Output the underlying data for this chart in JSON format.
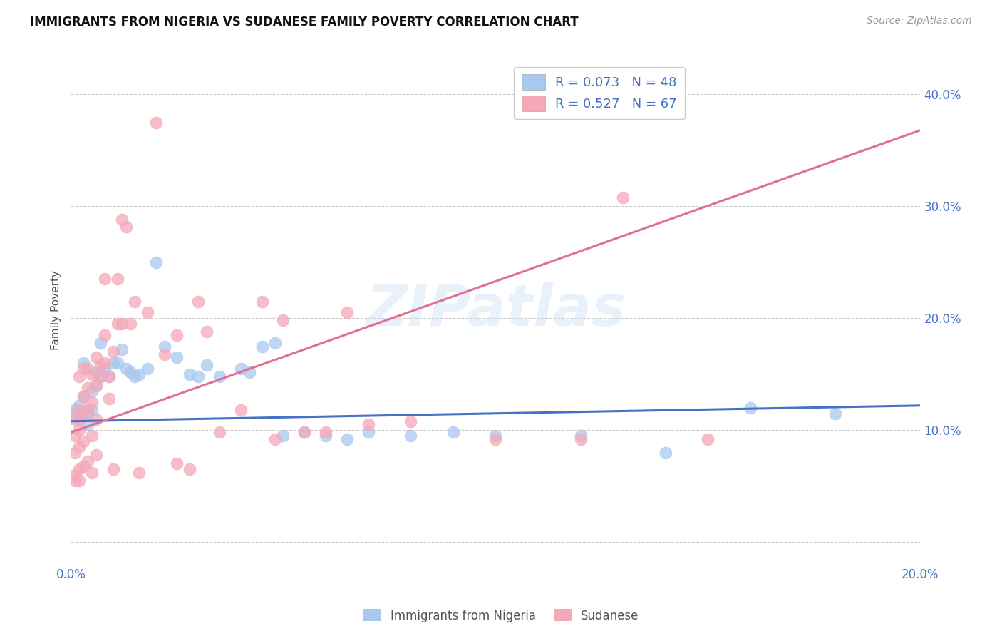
{
  "title": "IMMIGRANTS FROM NIGERIA VS SUDANESE FAMILY POVERTY CORRELATION CHART",
  "source": "Source: ZipAtlas.com",
  "ylabel": "Family Poverty",
  "xlim": [
    0.0,
    0.2
  ],
  "ylim": [
    -0.02,
    0.435
  ],
  "legend_label1": "Immigrants from Nigeria",
  "legend_label2": "Sudanese",
  "color_blue": "#a8c8f0",
  "color_pink": "#f5a8b8",
  "line_blue": "#4472c4",
  "line_pink": "#e07090",
  "legend_text_color": "#4472c4",
  "watermark": "ZIPatlas",
  "background_color": "#ffffff",
  "grid_color": "#cccccc",
  "blue_scatter": [
    [
      0.001,
      0.118
    ],
    [
      0.001,
      0.115
    ],
    [
      0.002,
      0.122
    ],
    [
      0.002,
      0.11
    ],
    [
      0.003,
      0.16
    ],
    [
      0.003,
      0.13
    ],
    [
      0.003,
      0.113
    ],
    [
      0.004,
      0.115
    ],
    [
      0.004,
      0.105
    ],
    [
      0.005,
      0.135
    ],
    [
      0.005,
      0.118
    ],
    [
      0.006,
      0.152
    ],
    [
      0.006,
      0.14
    ],
    [
      0.007,
      0.178
    ],
    [
      0.007,
      0.148
    ],
    [
      0.008,
      0.155
    ],
    [
      0.009,
      0.148
    ],
    [
      0.01,
      0.16
    ],
    [
      0.011,
      0.16
    ],
    [
      0.012,
      0.172
    ],
    [
      0.013,
      0.155
    ],
    [
      0.014,
      0.152
    ],
    [
      0.015,
      0.148
    ],
    [
      0.016,
      0.15
    ],
    [
      0.018,
      0.155
    ],
    [
      0.02,
      0.25
    ],
    [
      0.022,
      0.175
    ],
    [
      0.025,
      0.165
    ],
    [
      0.028,
      0.15
    ],
    [
      0.03,
      0.148
    ],
    [
      0.032,
      0.158
    ],
    [
      0.035,
      0.148
    ],
    [
      0.04,
      0.155
    ],
    [
      0.042,
      0.152
    ],
    [
      0.045,
      0.175
    ],
    [
      0.048,
      0.178
    ],
    [
      0.05,
      0.095
    ],
    [
      0.055,
      0.098
    ],
    [
      0.06,
      0.095
    ],
    [
      0.065,
      0.092
    ],
    [
      0.07,
      0.098
    ],
    [
      0.08,
      0.095
    ],
    [
      0.09,
      0.098
    ],
    [
      0.1,
      0.095
    ],
    [
      0.12,
      0.095
    ],
    [
      0.14,
      0.08
    ],
    [
      0.16,
      0.12
    ],
    [
      0.18,
      0.115
    ]
  ],
  "pink_scatter": [
    [
      0.001,
      0.11
    ],
    [
      0.001,
      0.095
    ],
    [
      0.001,
      0.08
    ],
    [
      0.001,
      0.06
    ],
    [
      0.001,
      0.055
    ],
    [
      0.002,
      0.148
    ],
    [
      0.002,
      0.118
    ],
    [
      0.002,
      0.1
    ],
    [
      0.002,
      0.085
    ],
    [
      0.002,
      0.065
    ],
    [
      0.002,
      0.055
    ],
    [
      0.003,
      0.155
    ],
    [
      0.003,
      0.13
    ],
    [
      0.003,
      0.112
    ],
    [
      0.003,
      0.09
    ],
    [
      0.003,
      0.068
    ],
    [
      0.004,
      0.155
    ],
    [
      0.004,
      0.138
    ],
    [
      0.004,
      0.118
    ],
    [
      0.004,
      0.072
    ],
    [
      0.005,
      0.15
    ],
    [
      0.005,
      0.125
    ],
    [
      0.005,
      0.095
    ],
    [
      0.005,
      0.062
    ],
    [
      0.006,
      0.165
    ],
    [
      0.006,
      0.14
    ],
    [
      0.006,
      0.11
    ],
    [
      0.006,
      0.078
    ],
    [
      0.007,
      0.158
    ],
    [
      0.007,
      0.148
    ],
    [
      0.008,
      0.235
    ],
    [
      0.008,
      0.185
    ],
    [
      0.008,
      0.16
    ],
    [
      0.009,
      0.148
    ],
    [
      0.009,
      0.128
    ],
    [
      0.01,
      0.17
    ],
    [
      0.01,
      0.065
    ],
    [
      0.011,
      0.235
    ],
    [
      0.011,
      0.195
    ],
    [
      0.012,
      0.288
    ],
    [
      0.012,
      0.195
    ],
    [
      0.013,
      0.282
    ],
    [
      0.014,
      0.195
    ],
    [
      0.015,
      0.215
    ],
    [
      0.016,
      0.062
    ],
    [
      0.018,
      0.205
    ],
    [
      0.02,
      0.375
    ],
    [
      0.022,
      0.168
    ],
    [
      0.025,
      0.185
    ],
    [
      0.025,
      0.07
    ],
    [
      0.028,
      0.065
    ],
    [
      0.03,
      0.215
    ],
    [
      0.032,
      0.188
    ],
    [
      0.035,
      0.098
    ],
    [
      0.04,
      0.118
    ],
    [
      0.045,
      0.215
    ],
    [
      0.048,
      0.092
    ],
    [
      0.05,
      0.198
    ],
    [
      0.055,
      0.098
    ],
    [
      0.06,
      0.098
    ],
    [
      0.065,
      0.205
    ],
    [
      0.07,
      0.105
    ],
    [
      0.08,
      0.108
    ],
    [
      0.1,
      0.092
    ],
    [
      0.12,
      0.092
    ],
    [
      0.13,
      0.308
    ],
    [
      0.15,
      0.092
    ]
  ]
}
